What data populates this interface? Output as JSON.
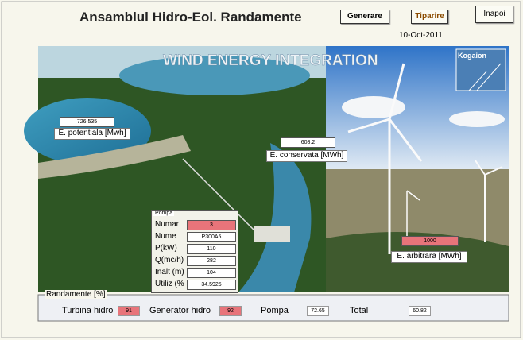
{
  "header": {
    "title": "Ansamblul Hidro-Eol. Randamente",
    "date": "10-Oct-2011",
    "buttons": [
      "Generare",
      "Tiparire",
      "Inapoi"
    ]
  },
  "banner": {
    "title": "WIND  ENERGY  INTEGRATION",
    "logo": "Kogaion"
  },
  "fields": [
    {
      "value": "726.535",
      "label": "E. potentiala [Mwh]"
    },
    {
      "value": "608.2",
      "label": "E. conservata [MWh]"
    },
    {
      "value": "1000",
      "label": "E. arbitrara [MWh]"
    }
  ],
  "pump": {
    "title": "Pompa",
    "rows": [
      [
        "Numar",
        "3"
      ],
      [
        "Nume",
        "P300A5"
      ],
      [
        "P(kW)",
        "110"
      ],
      [
        "Q(mc/h)",
        "282"
      ],
      [
        "Inalt (m)",
        "104"
      ],
      [
        "Utiliz (%",
        "34.5925"
      ]
    ]
  },
  "efficiency": {
    "title": "Randamente [%]",
    "items": [
      [
        "Turbina hidro",
        "91"
      ],
      [
        "Generator hidro",
        "92"
      ],
      [
        "Pompa",
        "72.65"
      ],
      [
        "Total",
        "60.82"
      ]
    ]
  }
}
